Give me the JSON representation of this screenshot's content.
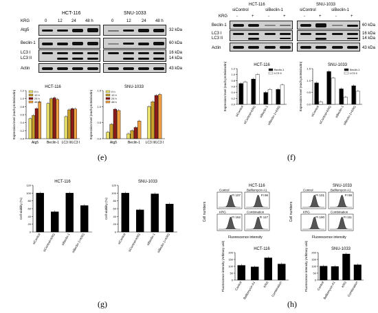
{
  "figure": {
    "panel_labels": [
      "(e)",
      "(f)",
      "(g)",
      "(h)"
    ]
  },
  "panel_e": {
    "krg_label": "KRG",
    "time_labels": [
      "0",
      "12",
      "24",
      "48 h"
    ],
    "cell_lines": [
      "HCT-116",
      "SNU-1033"
    ],
    "rows": [
      "Atg5",
      "Beclin-1",
      "LC3 I",
      "LC3 II",
      "Actin"
    ],
    "markers": [
      "32 kDa",
      "60 kDa",
      "16 kDa",
      "14 kDa",
      "43 kDa"
    ]
  },
  "panel_f": {
    "krg_label": "KRG",
    "signs": [
      "-",
      "+",
      "-",
      "+"
    ],
    "groups": [
      "siControl",
      "siBeclin-1"
    ],
    "cell_lines": [
      "HCT-116",
      "SNU-1033"
    ],
    "rows": [
      "Beclin-1",
      "LC3 I",
      "LC3 II",
      "Actin"
    ],
    "markers": [
      "60 kDa",
      "16 kDa",
      "14 kDa",
      "43 kDa"
    ]
  },
  "panel_h": {
    "cell_lines": [
      "HCT-116",
      "SNU-1033"
    ],
    "conditions": [
      "Control",
      "Bafilomycin A1",
      "KRG",
      "Combination"
    ],
    "fi_hct": [
      "FI 107",
      "FI 96",
      "FI 162",
      "FI 117"
    ],
    "fi_snu": [
      "FI 101",
      "FI 99",
      "FI 190",
      "FI 111"
    ],
    "x_label": "Fluorescence intensity",
    "y_label": "Cell numbers"
  },
  "chart_data": [
    {
      "type": "bar",
      "panel": "e-left",
      "title": "HCT-116",
      "ylabel": "Expression level (each protein/actin)",
      "categories": [
        "Atg5",
        "Beclin-1",
        "LC3 II/LC3 I"
      ],
      "series": [
        {
          "name": "0 h",
          "values": [
            0.5,
            0.88,
            0.55
          ]
        },
        {
          "name": "12 h",
          "values": [
            0.58,
            1.0,
            0.72
          ]
        },
        {
          "name": "24 h",
          "values": [
            0.75,
            1.02,
            0.75
          ]
        },
        {
          "name": "48 h",
          "values": [
            0.92,
            0.98,
            0.74
          ]
        }
      ],
      "ylim": [
        0,
        1.2
      ]
    },
    {
      "type": "bar",
      "panel": "e-right",
      "title": "SNU-1033",
      "ylabel": "Expression level (each protein/actin)",
      "categories": [
        "Atg5",
        "Beclin-1",
        "LC3 II/LC3 I"
      ],
      "series": [
        {
          "name": "0 h",
          "values": [
            0.2,
            0.15,
            1.0
          ]
        },
        {
          "name": "12 h",
          "values": [
            0.45,
            0.25,
            1.15
          ]
        },
        {
          "name": "24 h",
          "values": [
            0.92,
            0.35,
            1.35
          ]
        },
        {
          "name": "48 h",
          "values": [
            0.88,
            0.55,
            1.38
          ]
        }
      ],
      "ylim": [
        0,
        1.5
      ]
    },
    {
      "type": "bar",
      "panel": "f-left",
      "title": "HCT-116",
      "ylabel": "Expression level (each protein/actin)",
      "categories": [
        "siControl",
        "siControl+KRG",
        "siBeclin-1",
        "siBeclin-1+KRG"
      ],
      "series": [
        {
          "name": "Beclin-1",
          "values": [
            0.7,
            0.85,
            0.4,
            0.5
          ]
        },
        {
          "name": "LC3 II",
          "values": [
            0.75,
            1.0,
            0.5,
            0.65
          ]
        }
      ],
      "ylim": [
        0,
        1.2
      ]
    },
    {
      "type": "bar",
      "panel": "f-right",
      "title": "SNU-1033",
      "ylabel": "Expression level (each protein/actin)",
      "categories": [
        "siControl",
        "siControl+KRG",
        "siBeclin-1",
        "siBeclin-1+KRG"
      ],
      "series": [
        {
          "name": "Beclin-1",
          "values": [
            0.9,
            1.38,
            0.65,
            0.78
          ]
        },
        {
          "name": "LC3 II",
          "values": [
            0.1,
            1.1,
            0.3,
            0.55
          ]
        }
      ],
      "ylim": [
        0,
        1.5
      ]
    },
    {
      "type": "bar",
      "panel": "g-left",
      "title": "HCT-116",
      "ylabel": "Cell viability (%)",
      "categories": [
        "siControl",
        "siControl+KRG",
        "siBeclin-1",
        "siBeclin-1+KRG"
      ],
      "values": [
        100,
        52,
        100,
        68
      ],
      "ylim": [
        0,
        120
      ]
    },
    {
      "type": "bar",
      "panel": "g-right",
      "title": "SNU-1033",
      "ylabel": "Cell viability (%)",
      "categories": [
        "siControl",
        "siControl+KRG",
        "siBeclin-1",
        "siBeclin-1+KRG"
      ],
      "values": [
        100,
        57,
        98,
        72
      ],
      "ylim": [
        0,
        120
      ]
    },
    {
      "type": "bar",
      "panel": "h-left",
      "title": "HCT-116",
      "ylabel": "Fluorescence intensity (Arbitrary unit)",
      "categories": [
        "Control",
        "Bafilomycin A1",
        "KRG",
        "Combination"
      ],
      "values": [
        107,
        96,
        162,
        117
      ],
      "ylim": [
        0,
        200
      ]
    },
    {
      "type": "bar",
      "panel": "h-right",
      "title": "SNU-1033",
      "ylabel": "Fluorescence intensity (Arbitrary unit)",
      "categories": [
        "Control",
        "Bafilomycin A1",
        "KRG",
        "Combination"
      ],
      "values": [
        101,
        99,
        190,
        111
      ],
      "ylim": [
        0,
        200
      ]
    }
  ]
}
